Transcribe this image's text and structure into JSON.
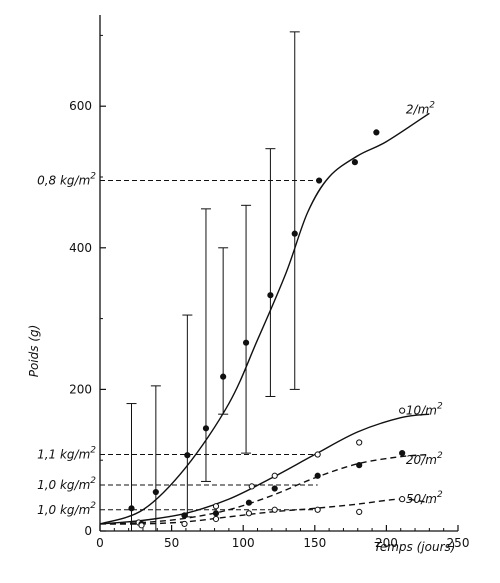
{
  "chart_data": {
    "type": "scatter",
    "xlabel": "Temps (jours)",
    "ylabel": "Poids (g)",
    "xlim": [
      0,
      250
    ],
    "ylim": [
      0,
      750
    ],
    "x_ticks": [
      {
        "value": 0,
        "label": "0"
      },
      {
        "value": 50,
        "label": "50"
      },
      {
        "value": 100,
        "label": "100"
      },
      {
        "value": 150,
        "label": "150"
      },
      {
        "value": 200,
        "label": "200"
      },
      {
        "value": 250,
        "label": "250"
      }
    ],
    "y_ticks": [
      {
        "value": 0,
        "label": "0"
      },
      {
        "value": 200,
        "label": "200"
      },
      {
        "value": 400,
        "label": "400"
      },
      {
        "value": 600,
        "label": "600"
      }
    ],
    "grid": false,
    "legend": "none",
    "series": [
      {
        "name": "2/m2",
        "label_base": "2/m",
        "label_exp": "2",
        "marker": "filled",
        "line": "solid",
        "label_at": [
          229,
          595
        ],
        "points": [
          {
            "x": 22,
            "y": 32,
            "err": [
              0,
              180
            ]
          },
          {
            "x": 39,
            "y": 55,
            "err": [
              0,
              205
            ]
          },
          {
            "x": 61,
            "y": 107,
            "err": [
              20,
              305
            ]
          },
          {
            "x": 74,
            "y": 145,
            "err": [
              70,
              455
            ]
          },
          {
            "x": 86,
            "y": 218,
            "err": [
              165,
              400
            ]
          },
          {
            "x": 102,
            "y": 266,
            "err": [
              110,
              460
            ]
          },
          {
            "x": 119,
            "y": 333,
            "err": [
              190,
              540
            ]
          },
          {
            "x": 136,
            "y": 420,
            "err": [
              200,
              705
            ]
          },
          {
            "x": 153,
            "y": 495
          },
          {
            "x": 178,
            "y": 521
          },
          {
            "x": 193,
            "y": 563
          }
        ],
        "curve": [
          [
            0,
            10
          ],
          [
            30,
            30
          ],
          [
            60,
            90
          ],
          [
            90,
            180
          ],
          [
            110,
            270
          ],
          [
            130,
            365
          ],
          [
            145,
            450
          ],
          [
            160,
            500
          ],
          [
            180,
            530
          ],
          [
            200,
            550
          ],
          [
            230,
            590
          ]
        ]
      },
      {
        "name": "10/m2",
        "label_base": "10/m",
        "label_exp": "2",
        "marker": "open",
        "line": "solid",
        "label_at": [
          229,
          170
        ],
        "points": [
          {
            "x": 27,
            "y": 12
          },
          {
            "x": 59,
            "y": 22
          },
          {
            "x": 81,
            "y": 35
          },
          {
            "x": 106,
            "y": 63
          },
          {
            "x": 122,
            "y": 78
          },
          {
            "x": 152,
            "y": 108
          },
          {
            "x": 181,
            "y": 125
          },
          {
            "x": 211,
            "y": 170
          }
        ],
        "curve": [
          [
            0,
            10
          ],
          [
            30,
            15
          ],
          [
            60,
            25
          ],
          [
            90,
            45
          ],
          [
            120,
            75
          ],
          [
            150,
            108
          ],
          [
            180,
            140
          ],
          [
            210,
            160
          ],
          [
            230,
            165
          ]
        ]
      },
      {
        "name": "20/m2",
        "label_base": "20/m",
        "label_exp": "2",
        "marker": "filled",
        "line": "dashed",
        "label_at": [
          229,
          100
        ],
        "points": [
          {
            "x": 29,
            "y": 10
          },
          {
            "x": 59,
            "y": 22
          },
          {
            "x": 81,
            "y": 25
          },
          {
            "x": 104,
            "y": 40
          },
          {
            "x": 122,
            "y": 60
          },
          {
            "x": 152,
            "y": 78
          },
          {
            "x": 181,
            "y": 93
          },
          {
            "x": 211,
            "y": 110
          }
        ],
        "curve": [
          [
            0,
            10
          ],
          [
            30,
            12
          ],
          [
            60,
            18
          ],
          [
            90,
            30
          ],
          [
            120,
            50
          ],
          [
            150,
            75
          ],
          [
            180,
            95
          ],
          [
            210,
            105
          ],
          [
            230,
            108
          ]
        ]
      },
      {
        "name": "50/m2",
        "label_base": "50/m",
        "label_exp": "2",
        "marker": "open",
        "line": "dashed",
        "label_at": [
          229,
          45
        ],
        "points": [
          {
            "x": 29,
            "y": 8
          },
          {
            "x": 59,
            "y": 10
          },
          {
            "x": 81,
            "y": 17
          },
          {
            "x": 104,
            "y": 25
          },
          {
            "x": 122,
            "y": 30
          },
          {
            "x": 152,
            "y": 30
          },
          {
            "x": 181,
            "y": 27
          },
          {
            "x": 211,
            "y": 45
          }
        ],
        "curve": [
          [
            0,
            10
          ],
          [
            30,
            10
          ],
          [
            60,
            13
          ],
          [
            90,
            20
          ],
          [
            120,
            27
          ],
          [
            150,
            32
          ],
          [
            180,
            38
          ],
          [
            210,
            45
          ],
          [
            230,
            40
          ]
        ]
      }
    ],
    "reference_lines": [
      {
        "label_base": "0,8 kg/m",
        "label_exp": "2",
        "y": 495,
        "x_end": 153
      },
      {
        "label_base": "1,1 kg/m",
        "label_exp": "2",
        "y": 108,
        "x_end": 152
      },
      {
        "label_base": "1,0 kg/m",
        "label_exp": "2",
        "y": 65,
        "x_end": 152
      },
      {
        "label_base": "1,0 kg/m",
        "label_exp": "2",
        "y": 30,
        "x_end": 152
      }
    ]
  }
}
